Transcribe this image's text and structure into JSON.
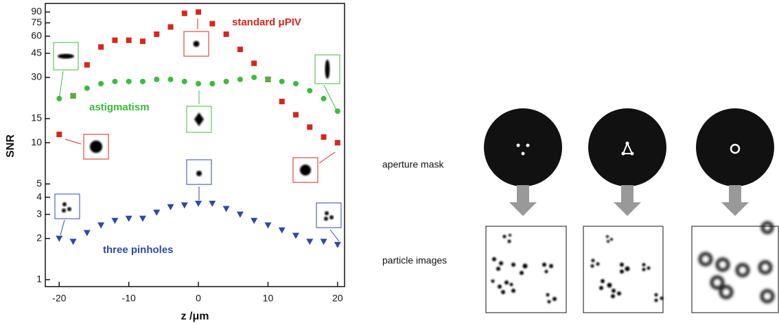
{
  "chart_data": {
    "type": "scatter",
    "xlabel": "z /μm",
    "ylabel": "SNR",
    "x": [
      -20,
      -18,
      -16,
      -14,
      -12,
      -10,
      -8,
      -6,
      -4,
      -2,
      0,
      2,
      4,
      6,
      8,
      10,
      12,
      14,
      16,
      18,
      20
    ],
    "xlim": [
      -22,
      21
    ],
    "xticks": [
      -20,
      -10,
      0,
      10,
      20
    ],
    "ylim": [
      0.89,
      104
    ],
    "yticks": [
      1,
      2,
      3,
      4,
      5,
      10,
      15,
      30,
      45,
      60,
      75,
      90
    ],
    "log_y": true,
    "grid": false,
    "series": [
      {
        "name": "standard μPIV",
        "color": "#d9261c",
        "marker": "square",
        "values": [
          11.5,
          22,
          37,
          50,
          56,
          56,
          55,
          62,
          70,
          88,
          90,
          74,
          62,
          48,
          38,
          29,
          20,
          16,
          13,
          11,
          10
        ]
      },
      {
        "name": "astigmatism",
        "color": "#3dbb3d",
        "marker": "circle",
        "values": [
          21,
          22,
          25,
          27,
          28,
          28,
          28,
          29,
          29,
          28,
          27,
          27,
          28,
          29,
          30,
          29,
          28,
          27,
          24,
          21,
          17
        ]
      },
      {
        "name": "three pinholes",
        "color": "#2b4aa8",
        "marker": "triangle-down",
        "values": [
          2.0,
          1.9,
          2.2,
          2.5,
          2.7,
          2.8,
          2.8,
          3.1,
          3.4,
          3.5,
          3.6,
          3.6,
          3.3,
          3.0,
          2.7,
          2.5,
          2.3,
          2.1,
          1.9,
          1.9,
          1.8
        ]
      }
    ]
  },
  "diagram": {
    "row_labels": [
      "aperture mask",
      "particle images"
    ]
  }
}
